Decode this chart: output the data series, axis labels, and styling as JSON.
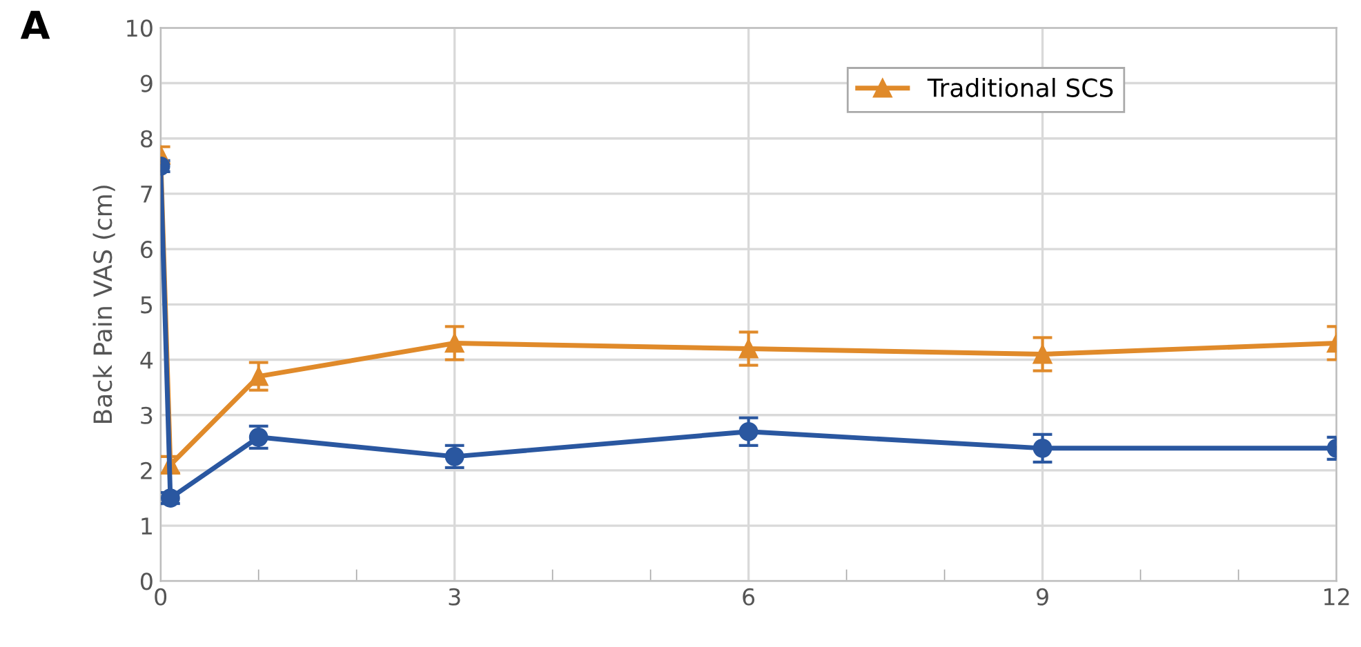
{
  "chart_data": {
    "type": "line",
    "ylabel": "Back Pain VAS (cm)",
    "annotations": [
      "A"
    ],
    "xlim": [
      0,
      12
    ],
    "ylim": [
      0,
      10
    ],
    "xticks": [
      0,
      {
        "value": 1,
        "label": null
      },
      {
        "value": 2,
        "label": null
      },
      3,
      {
        "value": 4,
        "label": null
      },
      {
        "value": 5,
        "label": null
      },
      6,
      {
        "value": 7,
        "label": null
      },
      {
        "value": 8,
        "label": null
      },
      9,
      {
        "value": 10,
        "label": null
      },
      {
        "value": 11,
        "label": null
      },
      12
    ],
    "yticks": [
      0,
      1,
      2,
      3,
      4,
      5,
      6,
      7,
      8,
      9,
      10
    ],
    "grid": true,
    "legend": "top right",
    "x": [
      0,
      0.1,
      1,
      3,
      6,
      9,
      12
    ],
    "series": [
      {
        "name": "Traditional SCS",
        "color": "#e08a2a",
        "marker": "triangle",
        "values": [
          7.7,
          2.1,
          3.7,
          4.3,
          4.2,
          4.1,
          4.3
        ],
        "errors": [
          0.15,
          0.15,
          0.25,
          0.3,
          0.3,
          0.3,
          0.3
        ]
      },
      {
        "color": "#2a57a0",
        "marker": "circle",
        "values": [
          7.5,
          1.5,
          2.6,
          2.25,
          2.7,
          2.4,
          2.4
        ],
        "errors": [
          0.1,
          0.1,
          0.2,
          0.2,
          0.25,
          0.25,
          0.2
        ]
      }
    ]
  }
}
